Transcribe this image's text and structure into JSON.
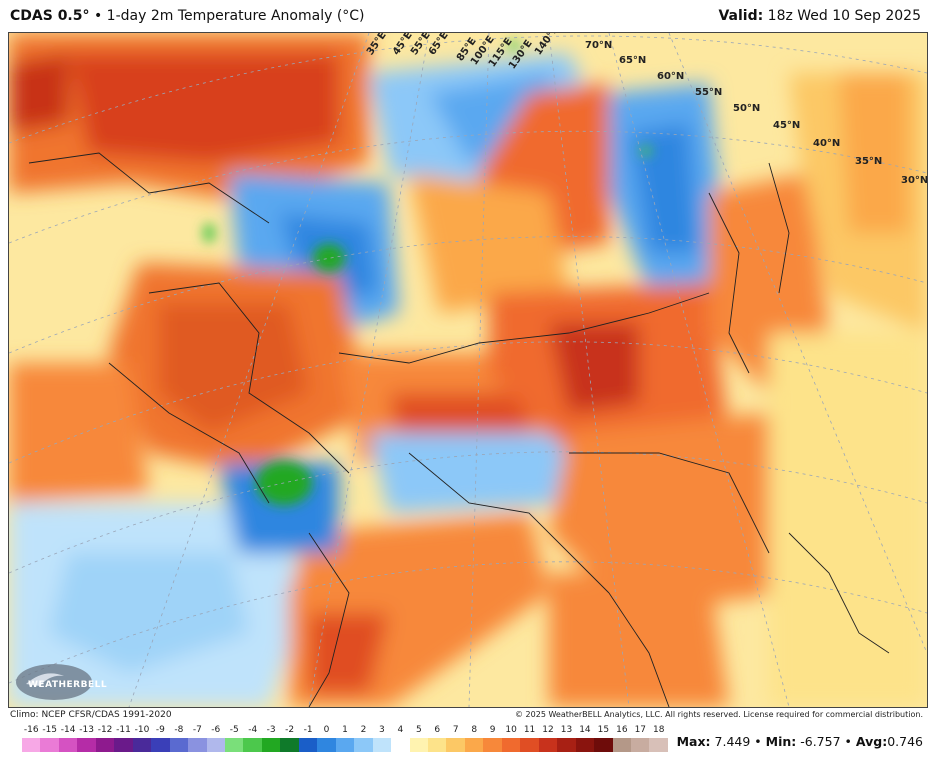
{
  "header": {
    "model": "CDAS 0.5°",
    "separator": " • ",
    "product": "1-day 2m Temperature Anomaly (°C)",
    "valid_label": "Valid:",
    "valid_time": "18z Wed 10 Sep 2025"
  },
  "map": {
    "lat_labels": [
      "70°N",
      "65°N",
      "60°N",
      "55°N",
      "50°N",
      "45°N",
      "40°N",
      "35°N",
      "30°N"
    ],
    "lon_labels": [
      "35°E",
      "45°E",
      "55°E",
      "65°E",
      "85°E",
      "100°E",
      "115°E",
      "130°E",
      "140°E"
    ],
    "logo_text": "WEATHERBELL"
  },
  "footer": {
    "climo": "Climo: NCEP CFSR/CDAS 1991-2020",
    "copyright": "© 2025 WeatherBELL Analytics, LLC. All rights reserved. License required for commercial distribution."
  },
  "colorbar": {
    "ticks": [
      "-16",
      "-15",
      "-14",
      "-13",
      "-12",
      "-11",
      "-10",
      "-9",
      "-8",
      "-7",
      "-6",
      "-5",
      "-4",
      "-3",
      "-2",
      "-1",
      "0",
      "1",
      "2",
      "3",
      "4",
      "5",
      "6",
      "7",
      "8",
      "9",
      "10",
      "11",
      "12",
      "13",
      "14",
      "15",
      "16",
      "17",
      "18"
    ],
    "colors": [
      "#f7a8e6",
      "#ea7bd6",
      "#d552c2",
      "#b52ca7",
      "#8e1a8e",
      "#6a1a8a",
      "#4a2a9a",
      "#3a3fb8",
      "#5a6ad0",
      "#8a92e0",
      "#b0b8ec",
      "#7adf7a",
      "#4cc84c",
      "#22a822",
      "#0f7a2a",
      "#1a5ec8",
      "#2f86e0",
      "#5aa8f0",
      "#8cc8f8",
      "#bfe3fb",
      "#ffffff",
      "#fff3b0",
      "#fde38a",
      "#fcc865",
      "#fba84a",
      "#f7883a",
      "#f06a2e",
      "#e04e24",
      "#c8321c",
      "#a82014",
      "#8a140e",
      "#6e0c0a",
      "#5a3a2a",
      "#7a5a4a",
      "#9a7a6a"
    ],
    "colors_warm": [
      "#b49888",
      "#c8aca0",
      "#d8c0b8",
      "#e6d4d0",
      "#f0e2e2",
      "#f4d0d0",
      "#eeb4b4",
      "#e69494",
      "#dc7474",
      "#d05858",
      "#c43e3e",
      "#b02828",
      "#9a1818"
    ]
  },
  "stats": {
    "max_label": "Max:",
    "max": "7.449",
    "min_label": "Min:",
    "min": "-6.757",
    "avg_label": "Avg:",
    "avg": "0.746",
    "dot": " • "
  }
}
